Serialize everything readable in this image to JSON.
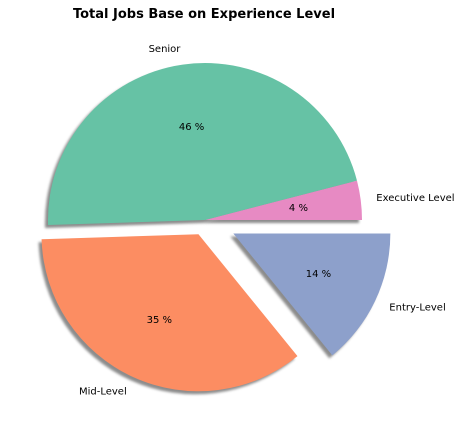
{
  "chart_data": {
    "type": "pie",
    "title": "Total Jobs Base on Experience Level",
    "start_angle_deg": 0,
    "counterclockwise": true,
    "shadow": true,
    "slices": [
      {
        "label": "Executive Level",
        "value": 4,
        "pct_label": "4 %",
        "color": "#e78ac3",
        "explode": 0
      },
      {
        "label": "Senior",
        "value": 46,
        "pct_label": "46 %",
        "color": "#66c2a5",
        "explode": 0
      },
      {
        "label": "Mid-Level",
        "value": 35,
        "pct_label": "35 %",
        "color": "#fc8d62",
        "explode": 0.1
      },
      {
        "label": "Entry-Level",
        "value": 14,
        "pct_label": "14 %",
        "color": "#8da0cb",
        "explode": 0.2
      }
    ]
  }
}
